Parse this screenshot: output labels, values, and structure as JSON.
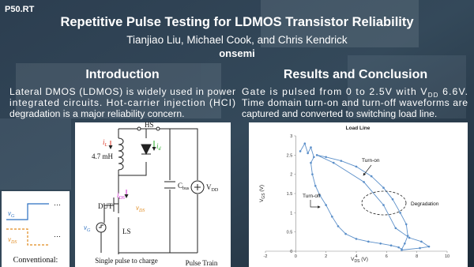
{
  "header": {
    "id": "P50.RT",
    "title": "Repetitive Pulse Testing for LDMOS Transistor Reliability",
    "authors": "Tianjiao Liu, Michael Cook, and Chris Kendrick",
    "affiliation": "onsemi"
  },
  "introduction": {
    "heading": "Introduction",
    "lines": [
      "Lateral DMOS (LDMOS) is widely used in power",
      "integrated circuits. Hot-carrier injection (HCI)",
      "degradation is a major reliability concern."
    ]
  },
  "results": {
    "heading": "Results and Conclusion",
    "first_line": {
      "text": "Gate is pulsed from 0 to 2.5V with V",
      "sub": "DD",
      "tail": " 6.6V."
    },
    "lines": [
      "Time domain turn-on and turn-off waveforms are",
      "captured and converted to switching load line."
    ]
  },
  "circuit": {
    "hs": "HS",
    "il": {
      "symbol": "i",
      "sub": "L"
    },
    "id": {
      "symbol": "i",
      "sub": "d"
    },
    "inductance": "4.7 mH",
    "cbus": {
      "symbol": "C",
      "sub": "bus"
    },
    "vdd": {
      "symbol": "V",
      "sub": "DD"
    },
    "ids": {
      "symbol": "i",
      "sub": "DS"
    },
    "dut": "DUT",
    "vds": {
      "symbol": "v",
      "sub": "DS"
    },
    "vg": {
      "symbol": "v",
      "sub": "G"
    },
    "ls": "LS",
    "caption_left": "Single pulse to charge",
    "caption_right": "Pulse Train"
  },
  "waveforms": {
    "vg": {
      "symbol": "v",
      "sub": "G"
    },
    "vds": {
      "symbol": "v",
      "sub": "DS"
    },
    "ellipsis": "…",
    "caption": "Conventional:"
  },
  "load_line": {
    "title": "Load Line",
    "x_label": {
      "symbol": "V",
      "sub": "DS",
      "unit": " (V)"
    },
    "y_label": {
      "symbol": "V",
      "sub": "GS",
      "unit": " (V)"
    },
    "xlim": [
      -2,
      10
    ],
    "ylim": [
      0,
      3
    ],
    "xticks": [
      -2,
      0,
      2,
      4,
      6,
      8,
      10
    ],
    "yticks": [
      0,
      0.5,
      1,
      1.5,
      2,
      2.5,
      3
    ],
    "color": "#5b8fc9",
    "x": [
      0.3,
      0.6,
      0.8,
      1.0,
      1.2,
      1.0,
      1.1,
      1.3,
      1.6,
      2.0,
      2.4,
      2.8,
      3.3,
      4.0,
      4.8,
      5.6,
      6.3,
      6.8,
      7.0,
      7.2,
      7.4,
      7.3,
      6.9,
      6.4,
      5.8,
      5.0,
      4.0,
      3.0,
      2.0,
      1.4,
      2.5,
      4.5,
      5.8,
      6.6,
      7.5,
      8.3,
      8.8,
      8.2,
      7.0
    ],
    "y": [
      2.6,
      2.8,
      2.55,
      2.7,
      2.45,
      2.3,
      2.0,
      1.7,
      1.45,
      1.2,
      0.9,
      0.65,
      0.45,
      0.32,
      0.25,
      0.2,
      0.15,
      0.1,
      0.05,
      0.2,
      0.4,
      0.7,
      1.0,
      1.35,
      1.65,
      1.95,
      2.2,
      2.35,
      2.45,
      2.5,
      2.3,
      1.8,
      1.2,
      0.6,
      0.35,
      0.25,
      0.12,
      0.08,
      0.03
    ],
    "annotations": [
      "Turn-on",
      "Turn-off",
      "Degradation"
    ]
  }
}
